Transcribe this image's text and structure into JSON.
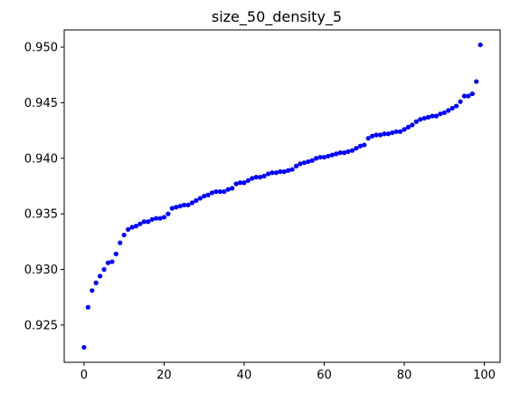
{
  "chart_data": {
    "type": "scatter",
    "title": "size_50_density_5",
    "xlabel": "",
    "ylabel": "",
    "xlim": [
      -4.95,
      103.95
    ],
    "ylim": [
      0.92165,
      0.95155
    ],
    "grid": false,
    "marker_color": "#0000ff",
    "x_ticks": [
      0,
      20,
      40,
      60,
      80,
      100
    ],
    "x_tick_labels": [
      "0",
      "20",
      "40",
      "60",
      "80",
      "100"
    ],
    "y_ticks": [
      0.925,
      0.93,
      0.935,
      0.94,
      0.945,
      0.95
    ],
    "y_tick_labels": [
      "0.925",
      "0.930",
      "0.935",
      "0.940",
      "0.945",
      "0.950"
    ],
    "series": [
      {
        "x": [
          0,
          1,
          2,
          3,
          4,
          5,
          6,
          7,
          8,
          9,
          10,
          11,
          12,
          13,
          14,
          15,
          16,
          17,
          18,
          19,
          20,
          21,
          22,
          23,
          24,
          25,
          26,
          27,
          28,
          29,
          30,
          31,
          32,
          33,
          34,
          35,
          36,
          37,
          38,
          39,
          40,
          41,
          42,
          43,
          44,
          45,
          46,
          47,
          48,
          49,
          50,
          51,
          52,
          53,
          54,
          55,
          56,
          57,
          58,
          59,
          60,
          61,
          62,
          63,
          64,
          65,
          66,
          67,
          68,
          69,
          70,
          71,
          72,
          73,
          74,
          75,
          76,
          77,
          78,
          79,
          80,
          81,
          82,
          83,
          84,
          85,
          86,
          87,
          88,
          89,
          90,
          91,
          92,
          93,
          94,
          95,
          96,
          97,
          98,
          99
        ],
        "y": [
          0.923,
          0.9266,
          0.9281,
          0.9288,
          0.9294,
          0.93,
          0.9306,
          0.9307,
          0.9314,
          0.9324,
          0.9331,
          0.9336,
          0.9338,
          0.9339,
          0.9341,
          0.9343,
          0.9343,
          0.9345,
          0.9346,
          0.9346,
          0.9347,
          0.935,
          0.9355,
          0.9356,
          0.9357,
          0.9358,
          0.9358,
          0.936,
          0.9362,
          0.9364,
          0.9366,
          0.9367,
          0.9369,
          0.937,
          0.937,
          0.937,
          0.9372,
          0.9373,
          0.9377,
          0.9378,
          0.9378,
          0.938,
          0.9382,
          0.9383,
          0.9383,
          0.9384,
          0.9386,
          0.9387,
          0.9387,
          0.9388,
          0.9388,
          0.9389,
          0.939,
          0.9393,
          0.9395,
          0.9396,
          0.9397,
          0.9398,
          0.94,
          0.9401,
          0.9401,
          0.9402,
          0.9403,
          0.9404,
          0.9405,
          0.9405,
          0.9406,
          0.9407,
          0.9409,
          0.9411,
          0.9412,
          0.9418,
          0.942,
          0.9421,
          0.9421,
          0.9422,
          0.9422,
          0.9423,
          0.9424,
          0.9424,
          0.9426,
          0.9428,
          0.943,
          0.9433,
          0.9435,
          0.9436,
          0.9437,
          0.9438,
          0.9438,
          0.944,
          0.9441,
          0.9443,
          0.9445,
          0.9447,
          0.9451,
          0.9456,
          0.9456,
          0.9458,
          0.9469,
          0.9502
        ]
      }
    ]
  }
}
